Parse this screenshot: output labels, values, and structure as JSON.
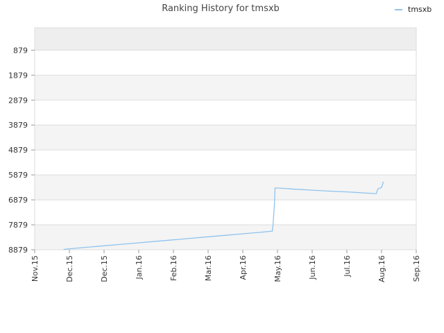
{
  "chart_data": {
    "type": "line",
    "title": "Ranking History for tmsxb",
    "xlabel": "",
    "ylabel": "",
    "legend": {
      "placement": "top-right",
      "entries": [
        "tmsxb"
      ]
    },
    "x_ticks": [
      "Nov.15",
      "Dec.15",
      "Dec.15",
      "Jan.16",
      "Feb.16",
      "Mar.16",
      "Apr.16",
      "May.16",
      "Jun.16",
      "Jul.16",
      "Aug.16",
      "Sep.16"
    ],
    "y_ticks": [
      "879",
      "1879",
      "2879",
      "3879",
      "4879",
      "5879",
      "6879",
      "7879",
      "8879"
    ],
    "y_tick_values": [
      879,
      1879,
      2879,
      3879,
      4879,
      5879,
      6879,
      7879,
      8879
    ],
    "ylim": [
      8879,
      -21
    ],
    "y_inverted": true,
    "grid": true,
    "series": [
      {
        "name": "tmsxb",
        "color": "#8ec3ee",
        "x": [
          0.83,
          1.0,
          1.5,
          2.0,
          2.5,
          3.0,
          3.5,
          4.0,
          4.5,
          5.0,
          5.5,
          6.0,
          6.5,
          6.85,
          6.87,
          6.91,
          6.93,
          7.2,
          7.5,
          8.0,
          8.5,
          9.0,
          9.5,
          9.85,
          9.87,
          9.9,
          10.0,
          10.03,
          10.05
        ],
        "y": [
          8870,
          8840,
          8780,
          8720,
          8660,
          8600,
          8540,
          8480,
          8420,
          8360,
          8300,
          8240,
          8180,
          8130,
          7900,
          7100,
          6400,
          6420,
          6450,
          6490,
          6530,
          6560,
          6600,
          6630,
          6520,
          6440,
          6380,
          6250,
          6150
        ]
      }
    ]
  }
}
